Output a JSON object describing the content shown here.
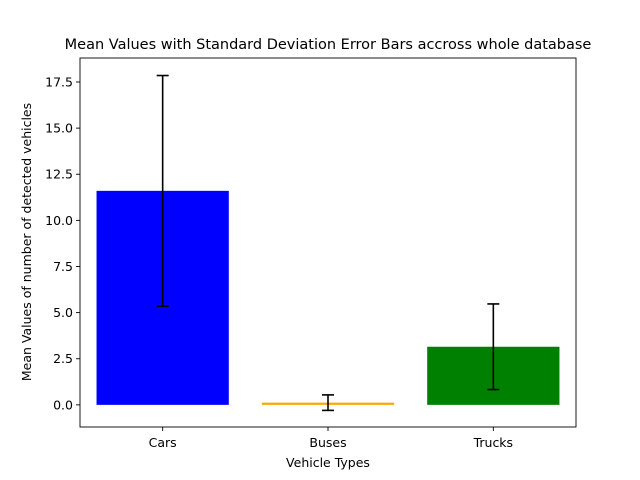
{
  "chart_data": {
    "type": "bar",
    "title": "Mean Values with Standard Deviation Error Bars accross whole database",
    "xlabel": "Vehicle Types",
    "ylabel": "Mean Values of number of detected vehicles",
    "categories": [
      "Cars",
      "Buses",
      "Trucks"
    ],
    "values": [
      11.6,
      0.12,
      3.15
    ],
    "errors": [
      6.25,
      0.42,
      2.32
    ],
    "colors": [
      "#0000ff",
      "#ffa500",
      "#008000"
    ],
    "error_color": "#000000",
    "ylim": [
      -1.2,
      18.8
    ],
    "yticks": [
      0.0,
      2.5,
      5.0,
      7.5,
      10.0,
      12.5,
      15.0,
      17.5
    ],
    "ytick_labels": [
      "0.0",
      "2.5",
      "5.0",
      "7.5",
      "10.0",
      "12.5",
      "15.0",
      "17.5"
    ],
    "grid": false,
    "legend": "none"
  }
}
